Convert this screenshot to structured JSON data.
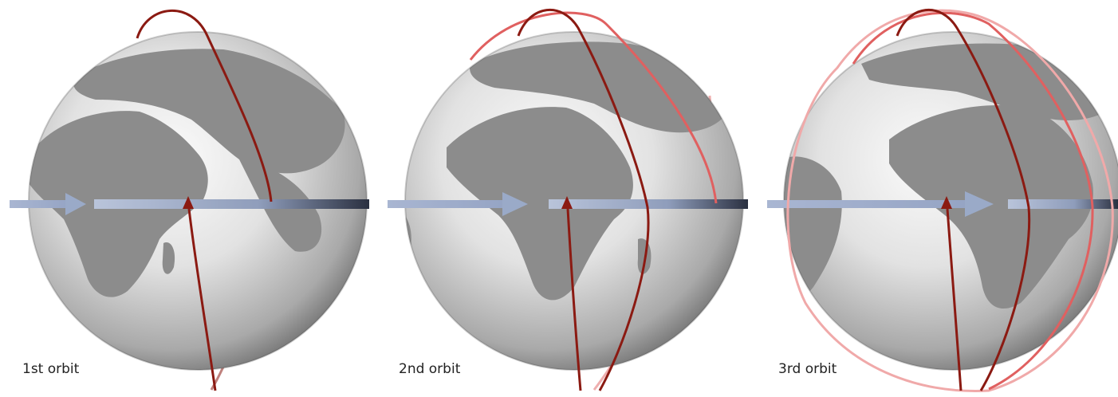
{
  "colors": {
    "background": "#ffffff",
    "globe_light": "#f7f7f7",
    "globe_mid": "#cfcfcf",
    "globe_dark": "#6e6e6e",
    "land": "#8a8a8a",
    "orbit_current": "#8b1a12",
    "orbit_previous": "#e06060",
    "orbit_older": "#f0a9a9",
    "rotation_arrow": "#9aaac8",
    "rotation_arrow_dark": "#2a3040"
  },
  "icons": {
    "orbit_arrow": "red-arrowhead",
    "rotation_arrow": "blue-arrowhead"
  },
  "panels": [
    {
      "label": "1st orbit"
    },
    {
      "label": "2nd orbit"
    },
    {
      "label": "3rd orbit"
    }
  ]
}
